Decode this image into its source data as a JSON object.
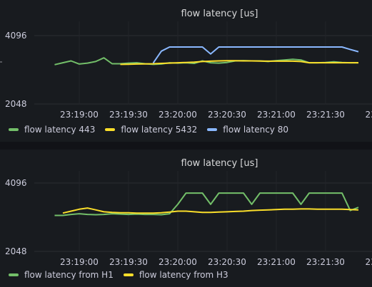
{
  "panels": [
    {
      "title": "flow latency [us]",
      "y_ticks": [
        "4096",
        "2048"
      ],
      "x_ticks": [
        "23:19:00",
        "23:19:30",
        "23:20:00",
        "23:20:30",
        "23:21:00",
        "23:21:30",
        "23:2"
      ],
      "legend": [
        {
          "label": "flow latency 443",
          "color": "#73bf69"
        },
        {
          "label": "flow latency 5432",
          "color": "#fade2a"
        },
        {
          "label": "flow latency 80",
          "color": "#8ab8ff"
        }
      ]
    },
    {
      "title": "flow latency [us]",
      "y_ticks": [
        "4096",
        "2048"
      ],
      "x_ticks": [
        "23:19:00",
        "23:19:30",
        "23:20:00",
        "23:20:30",
        "23:21:00",
        "23:21:30",
        "23:2"
      ],
      "legend": [
        {
          "label": "flow latency from H1",
          "color": "#73bf69"
        },
        {
          "label": "flow latency from H3",
          "color": "#fade2a"
        }
      ]
    }
  ],
  "chart_data": [
    {
      "type": "line",
      "title": "flow latency [us]",
      "y_scale": "log2",
      "ylim": [
        2048,
        4096
      ],
      "x": [
        "23:18:45",
        "23:18:50",
        "23:18:55",
        "23:19:00",
        "23:19:05",
        "23:19:10",
        "23:19:15",
        "23:19:20",
        "23:19:25",
        "23:19:30",
        "23:19:35",
        "23:19:40",
        "23:19:45",
        "23:19:50",
        "23:19:55",
        "23:20:00",
        "23:20:05",
        "23:20:10",
        "23:20:15",
        "23:20:20",
        "23:20:25",
        "23:20:30",
        "23:20:35",
        "23:20:40",
        "23:20:45",
        "23:20:50",
        "23:20:55",
        "23:21:00",
        "23:21:05",
        "23:21:10",
        "23:21:15",
        "23:21:20",
        "23:21:25",
        "23:21:30",
        "23:21:35",
        "23:21:40",
        "23:21:45",
        "23:21:50"
      ],
      "series": [
        {
          "name": "flow latency 443",
          "color": "#73bf69",
          "values": [
            3050,
            3110,
            3170,
            3070,
            3100,
            3150,
            3270,
            3080,
            3080,
            3100,
            3110,
            3080,
            3060,
            3070,
            3110,
            3100,
            3110,
            3090,
            3170,
            3110,
            3100,
            3120,
            3170,
            3180,
            3170,
            3170,
            3150,
            3180,
            3200,
            3220,
            3200,
            3110,
            3110,
            3120,
            3140,
            3120,
            3110,
            3110
          ]
        },
        {
          "name": "flow latency 5432",
          "color": "#fade2a",
          "values": [
            null,
            null,
            null,
            null,
            null,
            null,
            null,
            null,
            3060,
            3065,
            3070,
            3075,
            3080,
            3090,
            3100,
            3110,
            3120,
            3130,
            3150,
            3160,
            3170,
            3175,
            3175,
            3170,
            3170,
            3165,
            3160,
            3160,
            3160,
            3160,
            3150,
            3110,
            3110,
            3110,
            3110,
            3110,
            3110,
            3110
          ]
        },
        {
          "name": "flow latency 80",
          "color": "#8ab8ff",
          "values": [
            null,
            null,
            null,
            null,
            null,
            null,
            null,
            null,
            null,
            null,
            null,
            null,
            3100,
            3500,
            3650,
            3650,
            3650,
            3650,
            3650,
            3400,
            3650,
            3650,
            3650,
            3650,
            3650,
            3650,
            3650,
            3650,
            3650,
            3650,
            3650,
            3650,
            3650,
            3650,
            3650,
            3650,
            3560,
            3480
          ]
        }
      ]
    },
    {
      "type": "line",
      "title": "flow latency [us]",
      "y_scale": "log2",
      "ylim": [
        2048,
        4096
      ],
      "x": [
        "23:18:45",
        "23:18:50",
        "23:18:55",
        "23:19:00",
        "23:19:05",
        "23:19:10",
        "23:19:15",
        "23:19:20",
        "23:19:25",
        "23:19:30",
        "23:19:35",
        "23:19:40",
        "23:19:45",
        "23:19:50",
        "23:19:55",
        "23:20:00",
        "23:20:05",
        "23:20:10",
        "23:20:15",
        "23:20:20",
        "23:20:25",
        "23:20:30",
        "23:20:35",
        "23:20:40",
        "23:20:45",
        "23:20:50",
        "23:20:55",
        "23:21:00",
        "23:21:05",
        "23:21:10",
        "23:21:15",
        "23:21:20",
        "23:21:25",
        "23:21:30",
        "23:21:35",
        "23:21:40",
        "23:21:45",
        "23:21:50"
      ],
      "series": [
        {
          "name": "flow latency from H1",
          "color": "#73bf69",
          "values": [
            2950,
            2950,
            2980,
            3000,
            2980,
            2970,
            2980,
            3000,
            2990,
            2980,
            2990,
            2980,
            2980,
            2970,
            3000,
            3300,
            3700,
            3700,
            3700,
            3300,
            3700,
            3700,
            3700,
            3700,
            3300,
            3700,
            3700,
            3700,
            3700,
            3700,
            3300,
            3700,
            3700,
            3700,
            3700,
            3700,
            3100,
            3200
          ]
        },
        {
          "name": "flow latency from H3",
          "color": "#fade2a",
          "values": [
            null,
            3020,
            3080,
            3140,
            3180,
            3120,
            3060,
            3040,
            3030,
            3030,
            3020,
            3020,
            3020,
            3030,
            3050,
            3080,
            3080,
            3060,
            3040,
            3040,
            3050,
            3060,
            3070,
            3080,
            3100,
            3110,
            3120,
            3130,
            3140,
            3140,
            3150,
            3150,
            3140,
            3140,
            3140,
            3140,
            3130,
            3120
          ]
        }
      ]
    }
  ]
}
